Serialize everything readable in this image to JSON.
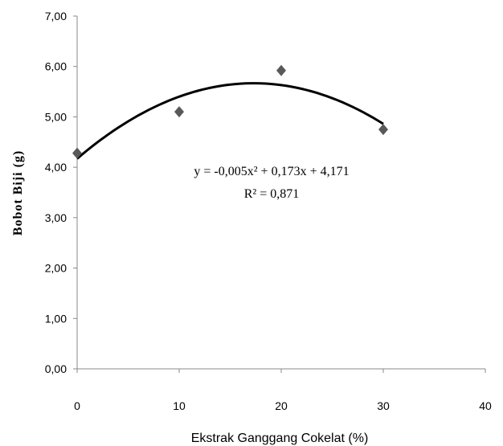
{
  "chart_data": {
    "type": "scatter",
    "xlabel": "Ekstrak Ganggang Cokelat (%)",
    "ylabel": "Bobot Biji (g)",
    "xlim": [
      0,
      40
    ],
    "ylim": [
      0,
      7
    ],
    "x_ticks": [
      "0",
      "10",
      "20",
      "30",
      "40"
    ],
    "y_ticks": [
      "0,00",
      "1,00",
      "2,00",
      "3,00",
      "4,00",
      "5,00",
      "6,00",
      "7,00"
    ],
    "grid": false,
    "legend": "none",
    "series": [
      {
        "x": [
          0,
          10,
          20,
          30
        ],
        "y": [
          4.28,
          5.1,
          5.92,
          4.75
        ],
        "marker": "diamond",
        "color": "#595959"
      }
    ],
    "trendline": {
      "type": "polynomial",
      "order": 2,
      "coefficients": [
        -0.005,
        0.173,
        4.171
      ],
      "x_range": [
        0,
        30
      ],
      "color": "#000000",
      "equation": "y = -0,005x² + 0,173x + 4,171",
      "r_squared": "R² = 0,871"
    }
  }
}
